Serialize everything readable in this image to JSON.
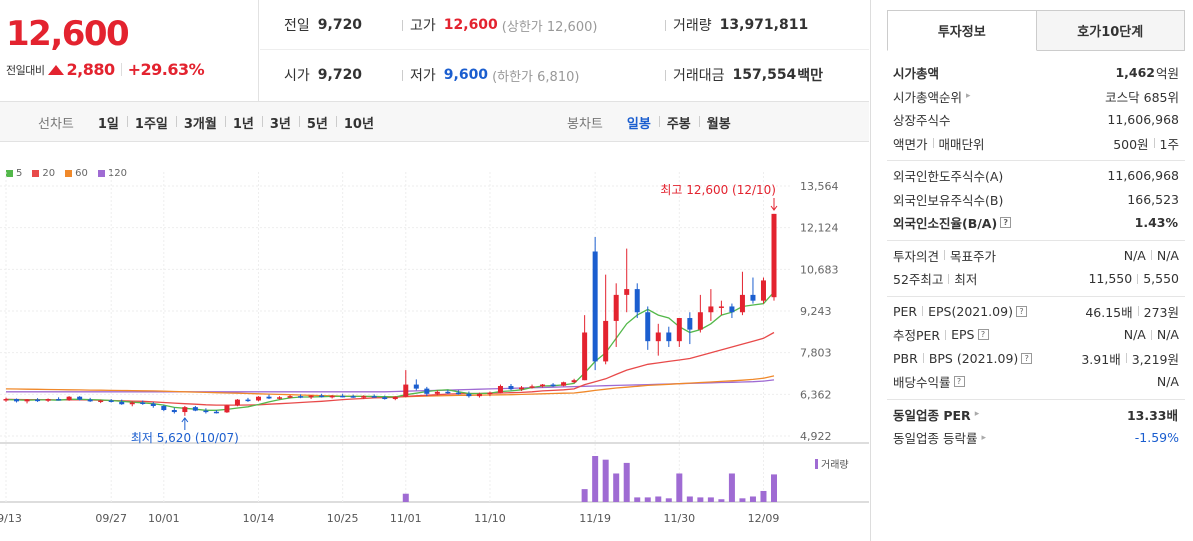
{
  "summary": {
    "price": "12,600",
    "change_label": "전일대비",
    "change_amount": "2,880",
    "change_percent": "+29.63%",
    "change_direction_icon": "upper-limit-triangle-icon"
  },
  "quote": {
    "prev_close_label": "전일",
    "prev_close": "9,720",
    "high_label": "고가",
    "high": "12,600",
    "upper_limit": "(상한가 12,600)",
    "volume_label": "거래량",
    "volume": "13,971,811",
    "open_label": "시가",
    "open": "9,720",
    "low_label": "저가",
    "low": "9,600",
    "lower_limit": "(하한가 6,810)",
    "trade_value_label": "거래대금",
    "trade_value": "157,554",
    "trade_value_unit": "백만"
  },
  "toolbar": {
    "line_title": "선차트",
    "line_periods": [
      "1일",
      "1주일",
      "3개월",
      "1년",
      "3년",
      "5년",
      "10년"
    ],
    "candle_title": "봉차트",
    "candle_periods": [
      "일봉",
      "주봉",
      "월봉"
    ],
    "active_candle": "일봉"
  },
  "colors": {
    "up": "#e3232f",
    "down": "#1b5ecf",
    "ma5": "#53b84a",
    "ma20": "#e84a4a",
    "ma60": "#f0892a",
    "ma120": "#9f6bd3",
    "volume": "#9f6bd3"
  },
  "chart_data": {
    "type": "candlestick",
    "legend": [
      "5",
      "20",
      "60",
      "120"
    ],
    "price_ticks": [
      "13,564",
      "12,124",
      "10,683",
      "9,243",
      "7,803",
      "6,362",
      "4,922"
    ],
    "price_tick_values": [
      13564,
      12124,
      10683,
      9243,
      7803,
      6362,
      4922
    ],
    "ylim": [
      4922,
      13564
    ],
    "x_tick_labels": [
      "09/13",
      "09/27",
      "10/01",
      "10/14",
      "10/25",
      "11/01",
      "11/10",
      "11/19",
      "11/30",
      "12/09"
    ],
    "x_tick_indices": [
      0,
      10,
      15,
      24,
      32,
      38,
      46,
      56,
      64,
      72
    ],
    "volume_label": "거래량",
    "annotation_high": "최고 12,600 (12/10)",
    "annotation_low": "최저 5,620 (10/07)",
    "high_index": 73,
    "low_index": 17,
    "candles": [
      [
        6150,
        6250,
        6100,
        6200
      ],
      [
        6200,
        6220,
        6080,
        6120
      ],
      [
        6120,
        6200,
        6050,
        6180
      ],
      [
        6180,
        6230,
        6100,
        6140
      ],
      [
        6140,
        6220,
        6100,
        6200
      ],
      [
        6200,
        6260,
        6150,
        6160
      ],
      [
        6160,
        6300,
        6140,
        6280
      ],
      [
        6280,
        6300,
        6150,
        6180
      ],
      [
        6180,
        6240,
        6100,
        6120
      ],
      [
        6120,
        6180,
        6060,
        6150
      ],
      [
        6150,
        6200,
        6080,
        6100
      ],
      [
        6100,
        6180,
        6000,
        6020
      ],
      [
        6020,
        6120,
        5950,
        6080
      ],
      [
        6080,
        6150,
        6000,
        6040
      ],
      [
        6040,
        6100,
        5900,
        5960
      ],
      [
        5960,
        6000,
        5780,
        5820
      ],
      [
        5820,
        5900,
        5700,
        5750
      ],
      [
        5750,
        5960,
        5620,
        5920
      ],
      [
        5920,
        5960,
        5780,
        5800
      ],
      [
        5800,
        5880,
        5700,
        5760
      ],
      [
        5760,
        5820,
        5700,
        5740
      ],
      [
        5740,
        6000,
        5720,
        5980
      ],
      [
        5980,
        6200,
        5950,
        6180
      ],
      [
        6180,
        6240,
        6100,
        6150
      ],
      [
        6150,
        6300,
        6120,
        6280
      ],
      [
        6280,
        6350,
        6200,
        6220
      ],
      [
        6220,
        6300,
        6180,
        6260
      ],
      [
        6260,
        6340,
        6220,
        6300
      ],
      [
        6300,
        6360,
        6230,
        6260
      ],
      [
        6260,
        6340,
        6200,
        6320
      ],
      [
        6320,
        6380,
        6250,
        6280
      ],
      [
        6280,
        6340,
        6220,
        6310
      ],
      [
        6310,
        6380,
        6260,
        6300
      ],
      [
        6300,
        6350,
        6240,
        6270
      ],
      [
        6270,
        6330,
        6200,
        6300
      ],
      [
        6300,
        6360,
        6250,
        6260
      ],
      [
        6260,
        6320,
        6180,
        6200
      ],
      [
        6200,
        6300,
        6160,
        6280
      ],
      [
        6280,
        7200,
        6260,
        6700
      ],
      [
        6700,
        6880,
        6500,
        6560
      ],
      [
        6560,
        6620,
        6300,
        6380
      ],
      [
        6380,
        6500,
        6330,
        6450
      ],
      [
        6450,
        6520,
        6380,
        6420
      ],
      [
        6420,
        6500,
        6350,
        6380
      ],
      [
        6380,
        6460,
        6250,
        6300
      ],
      [
        6300,
        6420,
        6250,
        6380
      ],
      [
        6380,
        6460,
        6300,
        6420
      ],
      [
        6420,
        6700,
        6400,
        6650
      ],
      [
        6650,
        6720,
        6500,
        6540
      ],
      [
        6540,
        6650,
        6480,
        6600
      ],
      [
        6600,
        6700,
        6560,
        6640
      ],
      [
        6640,
        6720,
        6600,
        6700
      ],
      [
        6700,
        6750,
        6620,
        6660
      ],
      [
        6660,
        6800,
        6640,
        6780
      ],
      [
        6780,
        6900,
        6750,
        6850
      ],
      [
        6850,
        9100,
        6850,
        8500
      ],
      [
        11300,
        11800,
        7200,
        7500
      ],
      [
        7500,
        10500,
        7400,
        8900
      ],
      [
        8900,
        10200,
        8000,
        9800
      ],
      [
        9800,
        11400,
        9200,
        10000
      ],
      [
        10000,
        10200,
        9000,
        9200
      ],
      [
        9200,
        9400,
        7900,
        8200
      ],
      [
        8200,
        8800,
        7700,
        8500
      ],
      [
        8500,
        8700,
        8000,
        8200
      ],
      [
        8200,
        9000,
        8000,
        9000
      ],
      [
        9000,
        9200,
        8100,
        8600
      ],
      [
        8600,
        9800,
        8500,
        9200
      ],
      [
        9200,
        10000,
        8900,
        9400
      ],
      [
        9400,
        9600,
        9100,
        9400
      ],
      [
        9400,
        9500,
        9000,
        9200
      ],
      [
        9200,
        10600,
        9100,
        9800
      ],
      [
        9800,
        10400,
        9500,
        9600
      ],
      [
        9600,
        10400,
        9500,
        10300
      ],
      [
        9720,
        12600,
        9600,
        12600
      ]
    ],
    "ma5": [
      6180,
      6170,
      6160,
      6170,
      6170,
      6160,
      6190,
      6190,
      6180,
      6170,
      6150,
      6120,
      6090,
      6070,
      6040,
      5990,
      5910,
      5880,
      5850,
      5810,
      5810,
      5840,
      5890,
      5930,
      6010,
      6100,
      6180,
      6240,
      6270,
      6270,
      6280,
      6290,
      6290,
      6290,
      6290,
      6290,
      6280,
      6270,
      6350,
      6400,
      6460,
      6500,
      6520,
      6450,
      6390,
      6390,
      6400,
      6460,
      6480,
      6520,
      6600,
      6650,
      6660,
      6690,
      6740,
      7100,
      7500,
      7800,
      8300,
      8800,
      9100,
      9300,
      9100,
      9000,
      8700,
      8500,
      8600,
      8800,
      9100,
      9200,
      9400,
      9450,
      9500,
      9900
    ],
    "ma20": [
      6190,
      6185,
      6180,
      6180,
      6175,
      6170,
      6170,
      6170,
      6165,
      6160,
      6150,
      6140,
      6130,
      6120,
      6100,
      6080,
      6060,
      6040,
      6020,
      6000,
      5990,
      5990,
      5990,
      5995,
      6000,
      6020,
      6040,
      6060,
      6080,
      6100,
      6120,
      6150,
      6180,
      6200,
      6220,
      6240,
      6250,
      6260,
      6290,
      6310,
      6330,
      6350,
      6370,
      6380,
      6390,
      6390,
      6400,
      6410,
      6420,
      6430,
      6450,
      6480,
      6500,
      6520,
      6550,
      6700,
      6800,
      6900,
      7050,
      7200,
      7300,
      7400,
      7450,
      7500,
      7550,
      7600,
      7700,
      7800,
      7900,
      8000,
      8100,
      8200,
      8300,
      8500
    ],
    "ma60": [
      6550,
      6545,
      6540,
      6535,
      6530,
      6525,
      6520,
      6515,
      6510,
      6505,
      6500,
      6495,
      6490,
      6485,
      6480,
      6470,
      6460,
      6450,
      6440,
      6430,
      6420,
      6410,
      6400,
      6390,
      6380,
      6370,
      6360,
      6350,
      6340,
      6330,
      6320,
      6310,
      6300,
      6295,
      6290,
      6285,
      6280,
      6275,
      6280,
      6290,
      6300,
      6310,
      6320,
      6325,
      6330,
      6335,
      6340,
      6345,
      6350,
      6360,
      6370,
      6380,
      6390,
      6400,
      6410,
      6450,
      6500,
      6540,
      6580,
      6610,
      6640,
      6670,
      6690,
      6710,
      6730,
      6750,
      6770,
      6790,
      6810,
      6830,
      6850,
      6880,
      6920,
      7000
    ],
    "ma120": [
      6450,
      6450,
      6450,
      6450,
      6450,
      6450,
      6450,
      6450,
      6450,
      6450,
      6450,
      6450,
      6450,
      6450,
      6450,
      6450,
      6450,
      6450,
      6450,
      6450,
      6450,
      6450,
      6450,
      6450,
      6450,
      6450,
      6450,
      6450,
      6450,
      6450,
      6450,
      6450,
      6450,
      6450,
      6450,
      6450,
      6450,
      6460,
      6470,
      6480,
      6490,
      6500,
      6510,
      6520,
      6530,
      6540,
      6550,
      6560,
      6570,
      6580,
      6590,
      6600,
      6610,
      6620,
      6630,
      6640,
      6650,
      6660,
      6670,
      6680,
      6690,
      6700,
      6710,
      6720,
      6730,
      6740,
      6750,
      6760,
      6770,
      6780,
      6790,
      6800,
      6820,
      6860
    ],
    "volume": [
      0,
      0,
      0,
      0,
      0,
      0,
      0,
      0,
      0,
      0,
      0,
      0,
      0,
      0,
      0,
      0,
      0,
      0,
      0,
      0,
      0,
      0,
      0,
      0,
      0,
      0,
      0,
      0,
      0,
      0,
      0,
      0,
      0,
      0,
      0,
      0,
      0,
      0,
      0.18,
      0,
      0,
      0,
      0,
      0,
      0,
      0,
      0,
      0,
      0,
      0,
      0,
      0,
      0,
      0,
      0,
      0.28,
      1.0,
      0.92,
      0.62,
      0.85,
      0.1,
      0.1,
      0.12,
      0.08,
      0.62,
      0.12,
      0.1,
      0.1,
      0.06,
      0.62,
      0.08,
      0.12,
      0.24,
      0.6
    ]
  },
  "tabs": [
    "투자정보",
    "호가10단계"
  ],
  "active_tab": "투자정보",
  "info": {
    "s1": [
      {
        "k": "시가총액",
        "v": "1,462",
        "u": "억원",
        "bold": true
      },
      {
        "k": "시가총액순위",
        "v": "코스닥 685위",
        "arrow": true
      },
      {
        "k": "상장주식수",
        "v": "11,606,968"
      },
      {
        "k1": "액면가",
        "k2": "매매단위",
        "v1": "500원",
        "v2": "1주"
      }
    ],
    "s2": [
      {
        "k": "외국인한도주식수(A)",
        "v": "11,606,968"
      },
      {
        "k": "외국인보유주식수(B)",
        "v": "166,523"
      },
      {
        "k": "외국인소진율(B/A)",
        "v": "1.43%",
        "bold": true,
        "help": true
      }
    ],
    "s3": [
      {
        "k1": "투자의견",
        "k2": "목표주가",
        "v1": "N/A",
        "v2": "N/A"
      },
      {
        "k1": "52주최고",
        "k2": "최저",
        "v1": "11,550",
        "v2": "5,550"
      }
    ],
    "s4": [
      {
        "k1": "PER",
        "k2": "EPS(2021.09)",
        "v1": "46.15배",
        "v2": "273원",
        "help": true
      },
      {
        "k1": "추정PER",
        "k2": "EPS",
        "v1": "N/A",
        "v2": "N/A",
        "help": true
      },
      {
        "k1": "PBR",
        "k2": "BPS (2021.09)",
        "v1": "3.91배",
        "v2": "3,219원",
        "help": true
      },
      {
        "k": "배당수익률",
        "v": "N/A",
        "help": true
      }
    ],
    "s5": [
      {
        "k": "동일업종 PER",
        "v": "13.33배",
        "bold": true,
        "arrow": true
      },
      {
        "k": "동일업종 등락률",
        "v": "-1.59%",
        "blue": true,
        "arrow": true
      }
    ]
  }
}
